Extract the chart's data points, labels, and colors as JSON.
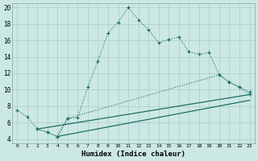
{
  "xlabel": "Humidex (Indice chaleur)",
  "bg_color": "#cce8e4",
  "line_color": "#1a6e62",
  "grid_color": "#aaccca",
  "xlim": [
    -0.5,
    23.5
  ],
  "ylim": [
    3.5,
    20.5
  ],
  "yticks": [
    4,
    6,
    8,
    10,
    12,
    14,
    16,
    18,
    20
  ],
  "xticks": [
    0,
    1,
    2,
    3,
    4,
    5,
    6,
    7,
    8,
    9,
    10,
    11,
    12,
    13,
    14,
    15,
    16,
    17,
    18,
    19,
    20,
    21,
    22,
    23
  ],
  "line1_x": [
    0,
    1,
    2,
    3,
    4,
    5,
    6,
    7,
    8,
    9,
    10,
    11,
    12,
    13,
    14,
    15,
    16,
    17,
    18,
    19,
    20,
    21,
    22,
    23
  ],
  "line1_y": [
    7.5,
    6.7,
    5.2,
    4.8,
    4.3,
    6.5,
    6.6,
    10.3,
    13.5,
    16.9,
    18.2,
    20.0,
    18.5,
    17.3,
    15.7,
    16.1,
    16.4,
    14.6,
    14.3,
    14.5,
    11.8,
    10.9,
    10.3,
    9.7
  ],
  "line2_x": [
    2,
    3,
    4,
    5,
    20,
    21,
    22,
    23
  ],
  "line2_y": [
    5.2,
    4.8,
    4.3,
    6.5,
    11.8,
    10.9,
    10.3,
    9.4
  ],
  "line3_x": [
    2,
    23
  ],
  "line3_y": [
    5.2,
    9.4
  ],
  "line4_x": [
    4,
    23
  ],
  "line4_y": [
    4.3,
    8.7
  ]
}
